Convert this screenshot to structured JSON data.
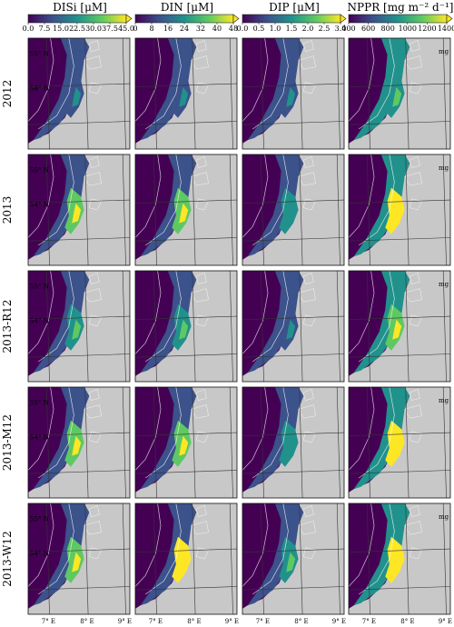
{
  "chart_data": {
    "type": "heatmap",
    "columns": [
      {
        "name": "DISi",
        "unit": "[μM]",
        "ticks": [
          "0.0",
          "7.5",
          "15.0",
          "22.5",
          "30.0",
          "37.5",
          "45.0"
        ],
        "range": [
          0,
          45
        ]
      },
      {
        "name": "DIN",
        "unit": "[μM]",
        "ticks": [
          "0",
          "8",
          "16",
          "24",
          "32",
          "40",
          "48"
        ],
        "range": [
          0,
          48
        ]
      },
      {
        "name": "DIP",
        "unit": "[μM]",
        "ticks": [
          "0.0",
          "0.5",
          "1.0",
          "1.5",
          "2.0",
          "2.5",
          "3.0"
        ],
        "range": [
          0,
          3
        ]
      },
      {
        "name": "NPPR",
        "unit": "[mg m⁻² d⁻¹]",
        "ticks": [
          "400",
          "600",
          "800",
          "1000",
          "1200",
          "1400"
        ],
        "range": [
          400,
          1400
        ]
      }
    ],
    "rows": [
      "2012",
      "2013",
      "2013-R12",
      "2013-M12",
      "2013-W12"
    ],
    "lat_ticks": [
      "55° N",
      "54° N"
    ],
    "lon_ticks": [
      "7° E",
      "8° E",
      "9° E"
    ],
    "side_label": "mg",
    "colormap": [
      "#440154",
      "#3b528b",
      "#21918c",
      "#5ec962",
      "#fde725"
    ],
    "land_color": "#c8c8c8",
    "nearshore_level": [
      [
        0.35,
        0.35,
        0.25,
        0.6
      ],
      [
        0.85,
        0.85,
        0.45,
        0.9
      ],
      [
        0.55,
        0.6,
        0.35,
        0.8
      ],
      [
        0.85,
        0.8,
        0.45,
        0.9
      ],
      [
        0.85,
        0.9,
        0.5,
        0.9
      ]
    ]
  }
}
